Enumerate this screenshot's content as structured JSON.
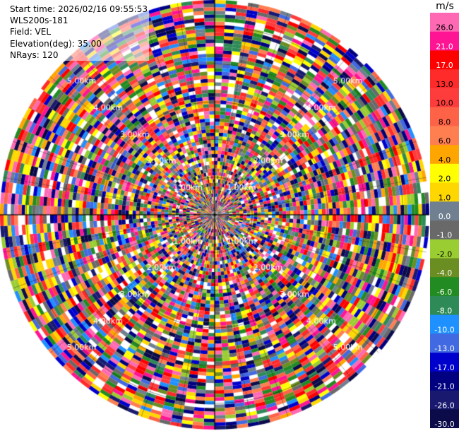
{
  "header": {
    "start_time": "Start time: 2026/02/16 09:55:53",
    "instrument": "WLS200s-181",
    "field": "Field: VEL",
    "elevation": "Elevation(deg): 35.00",
    "nrays": "NRays: 120"
  },
  "chart_data": {
    "type": "ppi-polar-scan",
    "field": "VEL",
    "unit": "m/s",
    "n_rays": 120,
    "elevation_deg": 35.0,
    "range_ring_labels": [
      "1.00km",
      "2.00km",
      "3.00km",
      "4.00km",
      "5.00km"
    ],
    "max_range_km": 5.7,
    "colorbar": {
      "ticks": [
        "26.0",
        "21.0",
        "17.0",
        "13.0",
        "10.0",
        "8.0",
        "6.0",
        "4.0",
        "2.0",
        "1.0",
        "0.0",
        "-1.0",
        "-2.0",
        "-4.0",
        "-6.0",
        "-8.0",
        "-10.0",
        "-13.0",
        "-17.0",
        "-21.0",
        "-26.0",
        "-30.0"
      ],
      "colors": [
        "#ff69b4",
        "#ff1493",
        "#ff0000",
        "#ff2a2a",
        "#ff3c3c",
        "#ff6347",
        "#ff7f50",
        "#ffa500",
        "#ffff00",
        "#ffd700",
        "#708090",
        "#696969",
        "#9acd32",
        "#6b8e23",
        "#228b22",
        "#2e8b57",
        "#1e90ff",
        "#4169e1",
        "#0000cd",
        "#000080",
        "#191970",
        "#0b0b4a"
      ]
    }
  }
}
